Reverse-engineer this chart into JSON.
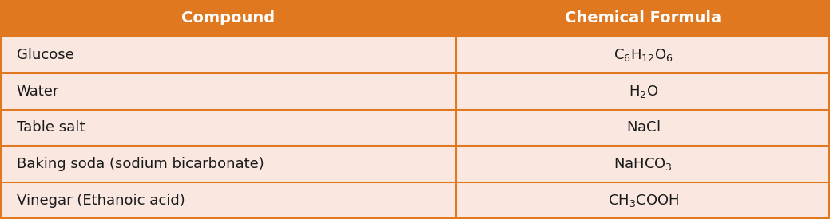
{
  "header": [
    "Compound",
    "Chemical Formula"
  ],
  "rows": [
    [
      "Glucose",
      "C_6H_{12}O_6"
    ],
    [
      "Water",
      "H_2O"
    ],
    [
      "Table salt",
      "NaCl"
    ],
    [
      "Baking soda (sodium bicarbonate)",
      "NaHCO_3"
    ],
    [
      "Vinegar (Ethanoic acid)",
      "CH_3COOH"
    ]
  ],
  "header_bg": "#E07820",
  "row_bg": "#FAE8E0",
  "border_color": "#E07820",
  "header_text_color": "#FFFFFF",
  "row_text_color": "#1A1A1A",
  "header_fontsize": 14,
  "row_fontsize": 13,
  "col_split": 0.55,
  "outer_border_color": "#E07820"
}
